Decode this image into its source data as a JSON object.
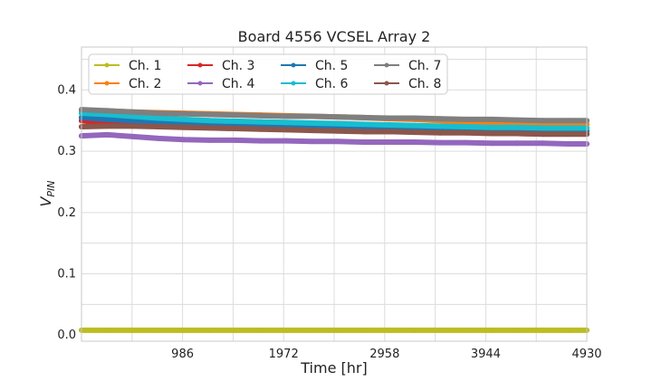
{
  "chart_data": {
    "type": "line",
    "title": "Board 4556 VCSEL Array 2",
    "xlabel": "Time [hr]",
    "ylabel_main": "V",
    "ylabel_sub": "PIN",
    "xlim": [
      0,
      4930
    ],
    "ylim": [
      -0.01,
      0.47
    ],
    "xticks": [
      986,
      1972,
      2958,
      3944,
      4930
    ],
    "xtick_labels": [
      "986",
      "1972",
      "2958",
      "3944",
      "4930"
    ],
    "yticks": [
      0.0,
      0.1,
      0.2,
      0.3,
      0.4
    ],
    "ytick_labels": [
      "0.0",
      "0.1",
      "0.2",
      "0.3",
      "0.4"
    ],
    "grid": true,
    "legend_position": "top-left",
    "x": [
      0,
      250,
      500,
      750,
      1000,
      1250,
      1500,
      1750,
      2000,
      2250,
      2500,
      2750,
      3000,
      3250,
      3500,
      3750,
      4000,
      4250,
      4500,
      4750,
      4930
    ],
    "series": [
      {
        "name": "Ch. 1",
        "color": "#bcbd22",
        "values": [
          0.008,
          0.008,
          0.008,
          0.008,
          0.008,
          0.008,
          0.008,
          0.008,
          0.008,
          0.008,
          0.008,
          0.008,
          0.008,
          0.008,
          0.008,
          0.008,
          0.008,
          0.008,
          0.008,
          0.008,
          0.008
        ]
      },
      {
        "name": "Ch. 2",
        "color": "#ff7f0e",
        "values": [
          0.365,
          0.366,
          0.364,
          0.363,
          0.362,
          0.361,
          0.36,
          0.359,
          0.358,
          0.357,
          0.356,
          0.355,
          0.353,
          0.352,
          0.35,
          0.348,
          0.347,
          0.346,
          0.345,
          0.344,
          0.344
        ]
      },
      {
        "name": "Ch. 3",
        "color": "#d62728",
        "values": [
          0.35,
          0.345,
          0.344,
          0.343,
          0.342,
          0.341,
          0.34,
          0.339,
          0.338,
          0.337,
          0.336,
          0.335,
          0.334,
          0.333,
          0.332,
          0.331,
          0.33,
          0.329,
          0.328,
          0.328,
          0.328
        ]
      },
      {
        "name": "Ch. 4",
        "color": "#9467bd",
        "values": [
          0.325,
          0.327,
          0.324,
          0.321,
          0.319,
          0.318,
          0.318,
          0.317,
          0.317,
          0.316,
          0.316,
          0.315,
          0.315,
          0.315,
          0.314,
          0.314,
          0.313,
          0.313,
          0.313,
          0.312,
          0.312
        ]
      },
      {
        "name": "Ch. 5",
        "color": "#1f77b4",
        "values": [
          0.355,
          0.352,
          0.35,
          0.348,
          0.347,
          0.346,
          0.345,
          0.344,
          0.343,
          0.342,
          0.341,
          0.34,
          0.339,
          0.338,
          0.337,
          0.336,
          0.335,
          0.334,
          0.333,
          0.333,
          0.333
        ]
      },
      {
        "name": "Ch. 6",
        "color": "#17becf",
        "values": [
          0.362,
          0.36,
          0.357,
          0.354,
          0.352,
          0.35,
          0.349,
          0.348,
          0.347,
          0.346,
          0.345,
          0.344,
          0.343,
          0.342,
          0.341,
          0.34,
          0.339,
          0.339,
          0.338,
          0.338,
          0.338
        ]
      },
      {
        "name": "Ch. 7",
        "color": "#7f7f7f",
        "values": [
          0.368,
          0.366,
          0.364,
          0.362,
          0.361,
          0.36,
          0.359,
          0.358,
          0.357,
          0.357,
          0.356,
          0.355,
          0.354,
          0.354,
          0.353,
          0.352,
          0.352,
          0.351,
          0.35,
          0.35,
          0.35
        ]
      },
      {
        "name": "Ch. 8",
        "color": "#8c564b",
        "values": [
          0.34,
          0.341,
          0.341,
          0.34,
          0.339,
          0.338,
          0.337,
          0.336,
          0.335,
          0.334,
          0.333,
          0.332,
          0.332,
          0.331,
          0.33,
          0.33,
          0.329,
          0.329,
          0.328,
          0.328,
          0.328
        ]
      }
    ]
  }
}
